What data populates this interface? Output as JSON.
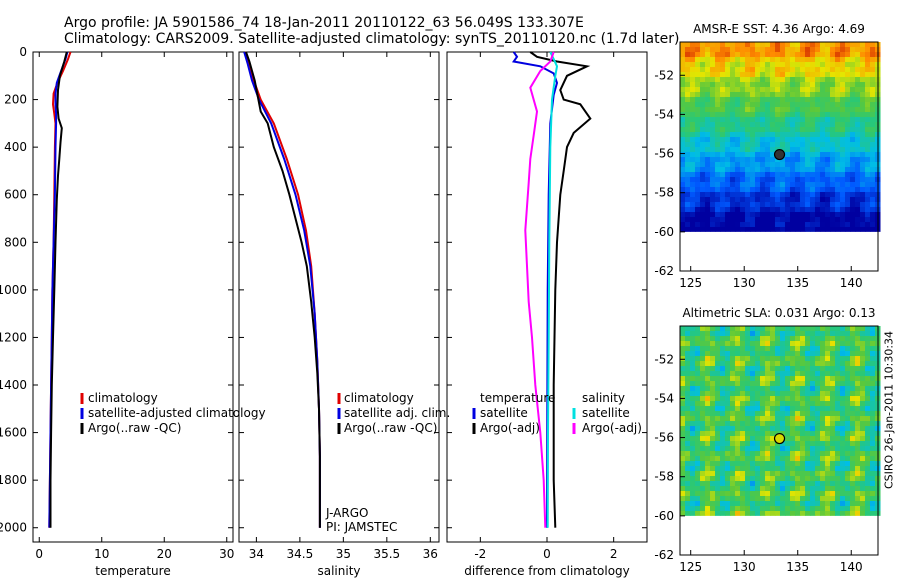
{
  "header": {
    "title_line1": "Argo profile: JA 5901586_74 18-Jan-2011 20110122_63 56.049S 133.307E",
    "title_line2": "Climatology: CARS2009. Satellite-adjusted climatology: synTS_20110120.nc (1.7d later)"
  },
  "footer": {
    "credit": "CSIRO 26-Jan-2011 10:30:34"
  },
  "chart_data": [
    {
      "type": "line",
      "name": "temperature-panel",
      "xlabel": "temperature",
      "ylabel": "",
      "xlim": [
        -1,
        31
      ],
      "ylim": [
        2060,
        0
      ],
      "xticks": [
        0,
        10,
        20,
        30
      ],
      "yticks": [
        0,
        200,
        400,
        600,
        800,
        1000,
        1200,
        1400,
        1600,
        1800,
        2000
      ],
      "legend": [
        "climatology",
        "satellite-adjusted climatology",
        "Argo(..raw -QC)"
      ],
      "series": [
        {
          "name": "climatology",
          "color": "#e00000",
          "points": [
            [
              5.0,
              0
            ],
            [
              4.6,
              30
            ],
            [
              3.8,
              80
            ],
            [
              2.9,
              130
            ],
            [
              2.3,
              175
            ],
            [
              2.2,
              220
            ],
            [
              2.4,
              260
            ],
            [
              2.6,
              300
            ],
            [
              2.5,
              400
            ],
            [
              2.4,
              600
            ],
            [
              2.3,
              800
            ],
            [
              2.1,
              1000
            ],
            [
              2.0,
              1200
            ],
            [
              1.9,
              1400
            ],
            [
              1.8,
              1600
            ],
            [
              1.7,
              1800
            ],
            [
              1.6,
              2000
            ]
          ]
        },
        {
          "name": "satellite-adjusted climatology",
          "color": "#0000e0",
          "points": [
            [
              4.5,
              0
            ],
            [
              4.2,
              30
            ],
            [
              3.5,
              80
            ],
            [
              2.8,
              130
            ],
            [
              2.6,
              175
            ],
            [
              2.6,
              220
            ],
            [
              2.7,
              260
            ],
            [
              2.7,
              300
            ],
            [
              2.6,
              400
            ],
            [
              2.5,
              600
            ],
            [
              2.3,
              800
            ],
            [
              2.1,
              1000
            ],
            [
              2.0,
              1200
            ],
            [
              1.9,
              1400
            ],
            [
              1.8,
              1600
            ],
            [
              1.7,
              1800
            ],
            [
              1.6,
              2000
            ]
          ]
        },
        {
          "name": "Argo(..raw -QC)",
          "color": "#000000",
          "points": [
            [
              4.4,
              0
            ],
            [
              4.0,
              40
            ],
            [
              3.3,
              100
            ],
            [
              3.0,
              160
            ],
            [
              2.9,
              230
            ],
            [
              3.1,
              280
            ],
            [
              3.6,
              320
            ],
            [
              3.4,
              380
            ],
            [
              3.2,
              450
            ],
            [
              3.0,
              520
            ],
            [
              2.8,
              620
            ],
            [
              2.6,
              800
            ],
            [
              2.4,
              1000
            ],
            [
              2.2,
              1200
            ],
            [
              2.0,
              1400
            ],
            [
              1.9,
              1600
            ],
            [
              1.8,
              1800
            ],
            [
              1.8,
              2000
            ]
          ]
        }
      ]
    },
    {
      "type": "line",
      "name": "salinity-panel",
      "xlabel": "salinity",
      "ylabel": "",
      "xlim": [
        33.8,
        36.1
      ],
      "ylim": [
        2060,
        0
      ],
      "xticks": [
        34,
        34.5,
        35,
        35.5,
        36
      ],
      "legend": [
        "climatology",
        "satellite adj. clim.",
        "Argo(..raw -QC)"
      ],
      "annotation": [
        "J-ARGO",
        "PI: JAMSTEC"
      ],
      "series": [
        {
          "name": "climatology",
          "color": "#e00000",
          "points": [
            [
              33.87,
              0
            ],
            [
              33.92,
              50
            ],
            [
              33.97,
              120
            ],
            [
              34.05,
              200
            ],
            [
              34.2,
              300
            ],
            [
              34.35,
              450
            ],
            [
              34.48,
              600
            ],
            [
              34.57,
              750
            ],
            [
              34.63,
              900
            ],
            [
              34.67,
              1100
            ],
            [
              34.7,
              1300
            ],
            [
              34.72,
              1500
            ],
            [
              34.73,
              1700
            ],
            [
              34.73,
              1900
            ],
            [
              34.73,
              2000
            ]
          ]
        },
        {
          "name": "satellite adj. clim.",
          "color": "#0000e0",
          "points": [
            [
              33.86,
              0
            ],
            [
              33.9,
              50
            ],
            [
              33.95,
              120
            ],
            [
              34.03,
              200
            ],
            [
              34.17,
              300
            ],
            [
              34.32,
              450
            ],
            [
              34.45,
              600
            ],
            [
              34.55,
              750
            ],
            [
              34.62,
              900
            ],
            [
              34.67,
              1100
            ],
            [
              34.7,
              1300
            ],
            [
              34.72,
              1500
            ],
            [
              34.73,
              1700
            ],
            [
              34.73,
              1900
            ],
            [
              34.73,
              2000
            ]
          ]
        },
        {
          "name": "Argo(..raw -QC)",
          "color": "#000000",
          "points": [
            [
              33.88,
              0
            ],
            [
              33.92,
              40
            ],
            [
              33.98,
              120
            ],
            [
              34.05,
              250
            ],
            [
              34.13,
              300
            ],
            [
              34.2,
              400
            ],
            [
              34.3,
              500
            ],
            [
              34.38,
              600
            ],
            [
              34.45,
              700
            ],
            [
              34.52,
              800
            ],
            [
              34.58,
              900
            ],
            [
              34.63,
              1050
            ],
            [
              34.67,
              1200
            ],
            [
              34.7,
              1350
            ],
            [
              34.72,
              1500
            ],
            [
              34.73,
              1700
            ],
            [
              34.73,
              1900
            ],
            [
              34.73,
              2000
            ]
          ]
        }
      ]
    },
    {
      "type": "line",
      "name": "difference-panel",
      "xlabel": "difference from climatology",
      "ylabel": "",
      "xlim": [
        -3,
        3
      ],
      "ylim": [
        2060,
        0
      ],
      "xticks": [
        -2,
        0,
        2
      ],
      "legend_headers": [
        "temperature",
        "salinity"
      ],
      "legend": [
        "satellite",
        "Argo(-adj)",
        "satellite",
        "Argo(-adj)"
      ],
      "series": [
        {
          "name": "temperature satellite",
          "color": "#0000e0",
          "points": [
            [
              -1.0,
              0
            ],
            [
              -0.9,
              20
            ],
            [
              -1.0,
              40
            ],
            [
              -0.2,
              60
            ],
            [
              0.2,
              90
            ],
            [
              0.3,
              130
            ],
            [
              0.2,
              180
            ],
            [
              0.1,
              300
            ],
            [
              0.05,
              600
            ],
            [
              0.02,
              1000
            ],
            [
              0.01,
              1500
            ],
            [
              0.0,
              2000
            ]
          ]
        },
        {
          "name": "temperature Argo(-adj)",
          "color": "#000000",
          "points": [
            [
              -0.5,
              0
            ],
            [
              -0.3,
              20
            ],
            [
              0.3,
              40
            ],
            [
              1.2,
              60
            ],
            [
              0.6,
              100
            ],
            [
              0.4,
              160
            ],
            [
              0.5,
              200
            ],
            [
              1.0,
              220
            ],
            [
              1.3,
              280
            ],
            [
              0.8,
              340
            ],
            [
              0.6,
              400
            ],
            [
              0.5,
              500
            ],
            [
              0.4,
              600
            ],
            [
              0.3,
              800
            ],
            [
              0.25,
              1000
            ],
            [
              0.2,
              1400
            ],
            [
              0.2,
              1800
            ],
            [
              0.25,
              2000
            ]
          ]
        },
        {
          "name": "salinity satellite",
          "color": "#00e0e0",
          "points": [
            [
              0.1,
              0
            ],
            [
              0.2,
              30
            ],
            [
              0.3,
              60
            ],
            [
              0.25,
              100
            ],
            [
              0.15,
              200
            ],
            [
              0.1,
              400
            ],
            [
              0.07,
              800
            ],
            [
              0.05,
              1200
            ],
            [
              0.03,
              1600
            ],
            [
              0.02,
              2000
            ]
          ]
        },
        {
          "name": "salinity Argo(-adj)",
          "color": "#ff00ff",
          "points": [
            [
              0.2,
              0
            ],
            [
              0.1,
              40
            ],
            [
              -0.2,
              80
            ],
            [
              -0.5,
              150
            ],
            [
              -0.3,
              250
            ],
            [
              -0.4,
              350
            ],
            [
              -0.5,
              450
            ],
            [
              -0.55,
              550
            ],
            [
              -0.6,
              650
            ],
            [
              -0.65,
              750
            ],
            [
              -0.6,
              900
            ],
            [
              -0.55,
              1050
            ],
            [
              -0.45,
              1200
            ],
            [
              -0.35,
              1400
            ],
            [
              -0.2,
              1600
            ],
            [
              -0.1,
              1800
            ],
            [
              -0.05,
              2000
            ]
          ]
        }
      ]
    },
    {
      "type": "heatmap",
      "name": "sst-map",
      "title": "AMSR-E SST: 4.36 Argo: 4.69",
      "xlim": [
        124,
        142.5
      ],
      "ylim": [
        -62,
        -50.3
      ],
      "xticks": [
        125,
        130,
        135,
        140
      ],
      "yticks": [
        -52,
        -54,
        -56,
        -58,
        -60,
        -62
      ],
      "data_ylim": [
        -60,
        -50.3
      ],
      "float_position": [
        133.3,
        -56.05
      ],
      "marker_color": "#333333"
    },
    {
      "type": "heatmap",
      "name": "sla-map",
      "title": "Altimetric SLA: 0.031 Argo: 0.13",
      "xlim": [
        124,
        142.5
      ],
      "ylim": [
        -62,
        -50.3
      ],
      "xticks": [
        125,
        130,
        135,
        140
      ],
      "yticks": [
        -52,
        -54,
        -56,
        -58,
        -60,
        -62
      ],
      "data_ylim": [
        -60,
        -50.3
      ],
      "float_position": [
        133.3,
        -56.05
      ],
      "marker_color": "#d8d800"
    }
  ]
}
